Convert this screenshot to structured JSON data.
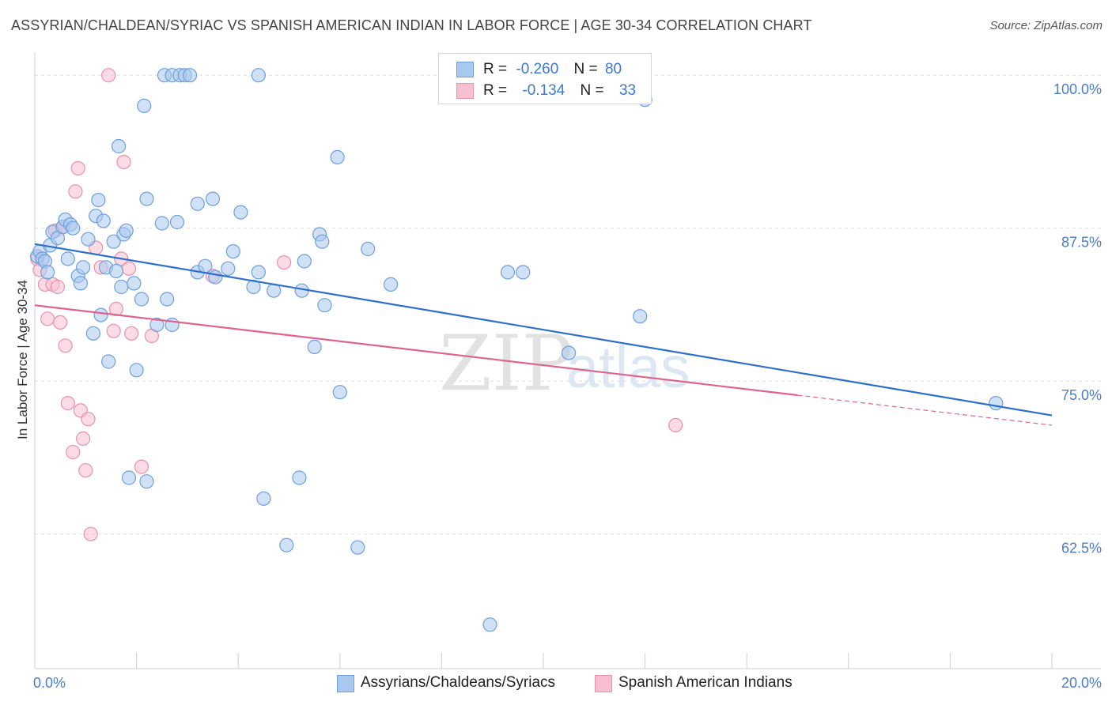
{
  "title": "ASSYRIAN/CHALDEAN/SYRIAC VS SPANISH AMERICAN INDIAN IN LABOR FORCE | AGE 30-34 CORRELATION CHART",
  "source": "Source: ZipAtlas.com",
  "watermark": {
    "zip": "ZIP",
    "atlas": "atlas"
  },
  "colors": {
    "blue_fill": "#a9c8ef",
    "blue_stroke": "#6d9fdc",
    "blue_line": "#2d6fcc",
    "pink_fill": "#f7bfd0",
    "pink_stroke": "#e891ad",
    "pink_line": "#e0638f",
    "tick_text": "#4a7cc9",
    "grid": "#dddddd"
  },
  "legend": {
    "rows": [
      {
        "r_label": "R =",
        "r_value": "-0.260",
        "n_label": "N =",
        "n_value": "80"
      },
      {
        "r_label": "R =",
        "r_value": "-0.134",
        "n_label": "N =",
        "n_value": "33"
      }
    ]
  },
  "chart_data": {
    "type": "scatter",
    "title": "ASSYRIAN/CHALDEAN/SYRIAC VS SPANISH AMERICAN INDIAN IN LABOR FORCE | AGE 30-34 CORRELATION CHART",
    "xlabel": "",
    "ylabel": "In Labor Force | Age 30-34",
    "xlim": [
      0,
      20
    ],
    "ylim": [
      51.5,
      101.5
    ],
    "x_tick_labels": [
      {
        "value": 0,
        "label": "0.0%"
      },
      {
        "value": 20,
        "label": "20.0%"
      }
    ],
    "y_tick_labels": [
      {
        "value": 100,
        "label": "100.0%"
      },
      {
        "value": 87.5,
        "label": "87.5%"
      },
      {
        "value": 75,
        "label": "75.0%"
      },
      {
        "value": 62.5,
        "label": "62.5%"
      }
    ],
    "y_gridlines": [
      100,
      87.5,
      75,
      62.5
    ],
    "series": [
      {
        "name": "Assyrians/Chaldeans/Syriacs",
        "r": -0.26,
        "n": 80,
        "trend": {
          "x0": 0,
          "y0": 86.2,
          "x1": 20,
          "y1": 72.2,
          "solid_to": 20
        },
        "points": [
          [
            0.05,
            85.2
          ],
          [
            0.1,
            85.6
          ],
          [
            0.15,
            85.0
          ],
          [
            0.2,
            84.8
          ],
          [
            0.25,
            83.9
          ],
          [
            0.3,
            86.1
          ],
          [
            0.35,
            87.2
          ],
          [
            0.45,
            86.7
          ],
          [
            0.55,
            87.6
          ],
          [
            0.6,
            88.2
          ],
          [
            0.7,
            87.8
          ],
          [
            0.75,
            87.5
          ],
          [
            0.65,
            85.0
          ],
          [
            0.85,
            83.6
          ],
          [
            0.9,
            83.0
          ],
          [
            0.95,
            84.3
          ],
          [
            1.05,
            86.6
          ],
          [
            1.15,
            78.9
          ],
          [
            1.2,
            88.5
          ],
          [
            1.25,
            89.8
          ],
          [
            1.3,
            80.4
          ],
          [
            1.35,
            88.1
          ],
          [
            1.4,
            84.3
          ],
          [
            1.45,
            76.6
          ],
          [
            1.55,
            86.4
          ],
          [
            1.6,
            84.0
          ],
          [
            1.65,
            94.2
          ],
          [
            1.7,
            82.7
          ],
          [
            1.75,
            87.0
          ],
          [
            1.8,
            87.3
          ],
          [
            1.85,
            67.1
          ],
          [
            1.95,
            83.0
          ],
          [
            2.0,
            75.9
          ],
          [
            2.1,
            81.7
          ],
          [
            2.15,
            97.5
          ],
          [
            2.2,
            89.9
          ],
          [
            2.2,
            66.8
          ],
          [
            2.4,
            79.6
          ],
          [
            2.5,
            87.9
          ],
          [
            2.55,
            100.0
          ],
          [
            2.6,
            81.7
          ],
          [
            2.7,
            100.0
          ],
          [
            2.7,
            79.6
          ],
          [
            2.8,
            88.0
          ],
          [
            2.85,
            100.0
          ],
          [
            2.95,
            100.0
          ],
          [
            3.05,
            100.0
          ],
          [
            3.2,
            89.5
          ],
          [
            3.2,
            83.9
          ],
          [
            3.35,
            84.4
          ],
          [
            3.5,
            89.9
          ],
          [
            3.55,
            83.5
          ],
          [
            3.8,
            84.2
          ],
          [
            3.9,
            85.6
          ],
          [
            4.05,
            88.8
          ],
          [
            4.3,
            82.7
          ],
          [
            4.4,
            100.0
          ],
          [
            4.4,
            83.9
          ],
          [
            4.5,
            65.4
          ],
          [
            4.7,
            82.4
          ],
          [
            4.95,
            61.6
          ],
          [
            5.2,
            67.1
          ],
          [
            5.25,
            82.4
          ],
          [
            5.3,
            84.8
          ],
          [
            5.5,
            77.8
          ],
          [
            5.6,
            87.0
          ],
          [
            5.65,
            86.4
          ],
          [
            5.7,
            81.2
          ],
          [
            5.95,
            93.3
          ],
          [
            6.0,
            74.1
          ],
          [
            6.35,
            61.4
          ],
          [
            6.55,
            85.8
          ],
          [
            7.0,
            82.9
          ],
          [
            8.95,
            55.1
          ],
          [
            9.3,
            83.9
          ],
          [
            9.6,
            83.9
          ],
          [
            10.5,
            77.3
          ],
          [
            11.9,
            80.3
          ],
          [
            12.0,
            98.0
          ],
          [
            18.9,
            73.2
          ]
        ]
      },
      {
        "name": "Spanish American Indians",
        "r": -0.134,
        "n": 33,
        "trend": {
          "x0": 0,
          "y0": 81.2,
          "x1": 20,
          "y1": 71.4,
          "solid_to": 15.0
        },
        "points": [
          [
            0.05,
            85.0
          ],
          [
            0.1,
            84.1
          ],
          [
            0.2,
            82.9
          ],
          [
            0.25,
            80.1
          ],
          [
            0.35,
            82.9
          ],
          [
            0.4,
            87.3
          ],
          [
            0.45,
            82.7
          ],
          [
            0.5,
            79.8
          ],
          [
            0.55,
            87.6
          ],
          [
            0.6,
            77.9
          ],
          [
            0.65,
            73.2
          ],
          [
            0.75,
            69.2
          ],
          [
            0.8,
            90.5
          ],
          [
            0.85,
            92.4
          ],
          [
            0.9,
            72.6
          ],
          [
            0.95,
            70.3
          ],
          [
            1.0,
            67.7
          ],
          [
            1.05,
            71.9
          ],
          [
            1.1,
            62.5
          ],
          [
            1.2,
            85.9
          ],
          [
            1.3,
            84.3
          ],
          [
            1.45,
            100.0
          ],
          [
            1.55,
            79.1
          ],
          [
            1.6,
            80.9
          ],
          [
            1.7,
            85.0
          ],
          [
            1.75,
            92.9
          ],
          [
            1.85,
            84.2
          ],
          [
            1.9,
            78.9
          ],
          [
            2.1,
            68.0
          ],
          [
            2.3,
            78.7
          ],
          [
            3.5,
            83.6
          ],
          [
            4.9,
            84.7
          ],
          [
            12.6,
            71.4
          ]
        ]
      }
    ]
  },
  "bottom_legend": [
    {
      "label": "Assyrians/Chaldeans/Syriacs"
    },
    {
      "label": "Spanish American Indians"
    }
  ]
}
